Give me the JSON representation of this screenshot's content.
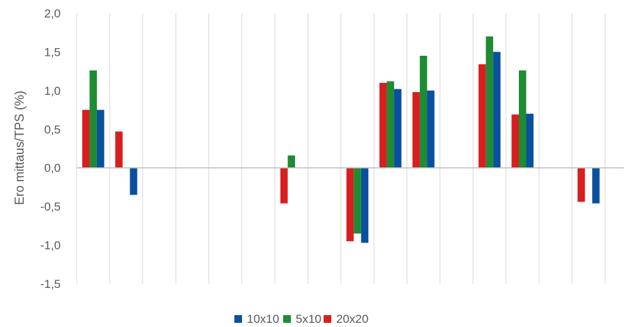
{
  "chart_data": {
    "type": "bar",
    "title": "",
    "xlabel": "",
    "ylabel": "Ero mittaus/TPS (%)",
    "ylim": [
      -1.5,
      2.0
    ],
    "yticks": [
      2.0,
      1.5,
      1.0,
      0.5,
      0.0,
      -0.5,
      -1.0,
      -1.5
    ],
    "ytick_labels": [
      "2,0",
      "1,5",
      "1,0",
      "0,5",
      "0,0",
      "-0,5",
      "-1,0",
      "-1,5"
    ],
    "categories": [
      "",
      "",
      "",
      "",
      "",
      "",
      "",
      "",
      "",
      "",
      "",
      "",
      "",
      "",
      "",
      "",
      ""
    ],
    "grid": "vertical",
    "legend_position": "bottom",
    "series": [
      {
        "name": "20x20",
        "color": "#d81e1e",
        "values": [
          0.75,
          0.47,
          null,
          null,
          null,
          null,
          -0.46,
          null,
          -0.95,
          1.1,
          0.98,
          null,
          1.34,
          0.69,
          null,
          -0.44,
          null
        ]
      },
      {
        "name": "5x10",
        "color": "#1e8c32",
        "values": [
          1.26,
          null,
          null,
          null,
          null,
          null,
          0.16,
          null,
          -0.85,
          1.12,
          1.45,
          null,
          1.7,
          1.26,
          null,
          null,
          null
        ]
      },
      {
        "name": "10x10",
        "color": "#0a50a0",
        "values": [
          0.75,
          -0.35,
          null,
          null,
          null,
          null,
          null,
          null,
          -0.97,
          1.02,
          1.0,
          null,
          1.5,
          0.7,
          null,
          -0.46,
          null
        ]
      }
    ],
    "legend_order": [
      "10x10",
      "5x10",
      "20x20"
    ]
  }
}
